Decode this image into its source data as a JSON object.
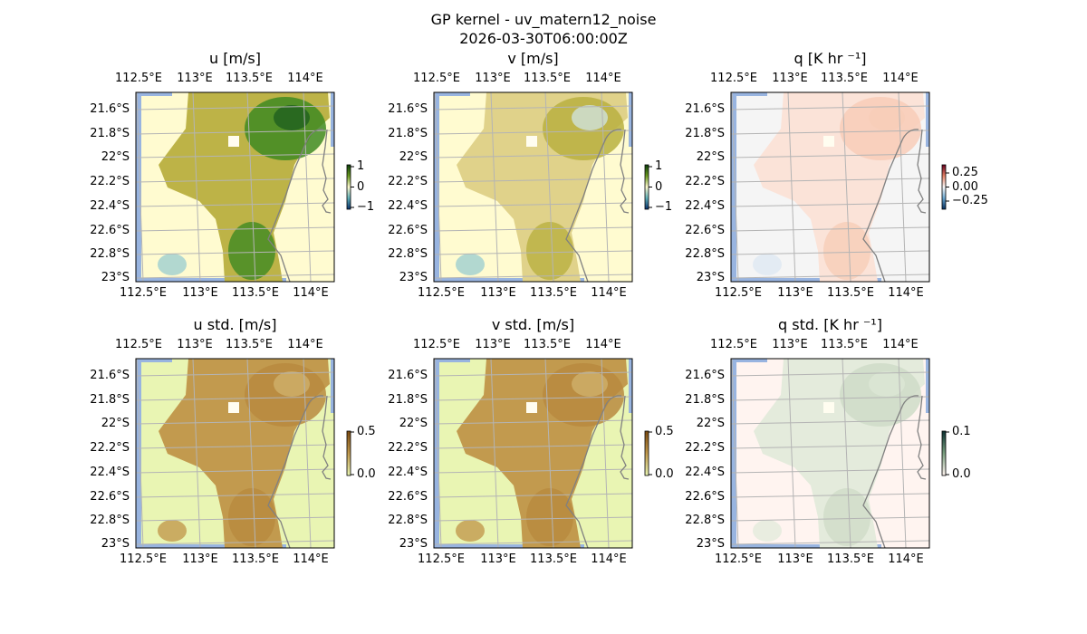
{
  "figure": {
    "title": "GP kernel - uv_matern12_noise",
    "subtitle": "2026-03-30T06:00:00Z"
  },
  "axes": {
    "lon_ticks": [
      "112.5°E",
      "113°E",
      "113.5°E",
      "114°E"
    ],
    "lat_ticks": [
      "21.6°S",
      "21.8°S",
      "22°S",
      "22.2°S",
      "22.4°S",
      "22.6°S",
      "22.8°S",
      "23°S"
    ]
  },
  "panels": [
    {
      "title": "u [m/s]",
      "colorbar_ticks": [
        "1",
        "0",
        "−1"
      ],
      "colors": {
        "bg": "#fffbd0",
        "field": "#bdb347",
        "hi": "#3f8a22",
        "hi2": "#1f5f1f",
        "low": "#9fcfcf",
        "cbar": [
          "#0a3d0a",
          "#6b9a20",
          "#fffbd0",
          "#60b0b8",
          "#08306b"
        ]
      }
    },
    {
      "title": "v [m/s]",
      "colorbar_ticks": [
        "1",
        "0",
        "−1"
      ],
      "colors": {
        "bg": "#fffbd0",
        "field": "#e0d28a",
        "hi": "#b9b040",
        "hi2": "#d0e2dc",
        "low": "#9fcfcf",
        "cbar": [
          "#0a3d0a",
          "#6b9a20",
          "#fffbd0",
          "#60b0b8",
          "#08306b"
        ]
      }
    },
    {
      "title": "q [K hr ⁻¹]",
      "colorbar_ticks": [
        "0.25",
        "0.00",
        "−0.25"
      ],
      "colors": {
        "bg": "#f5f5f5",
        "field": "#fbe3d8",
        "hi": "#f8cdb8",
        "hi2": "#f8cdb8",
        "low": "#dfe8f2",
        "cbar": [
          "#67001f",
          "#e58267",
          "#f7f7f7",
          "#6aa6cf",
          "#053061"
        ]
      }
    },
    {
      "title": "u std. [m/s]",
      "colorbar_ticks": [
        "0.5",
        "0.0"
      ],
      "colors": {
        "bg": "#e9f5b3",
        "field": "#c29a4e",
        "hi": "#b8893f",
        "hi2": "#cfb06a",
        "low": "#c29a4e",
        "cbar": [
          "#7a4a10",
          "#c29a4e",
          "#e9f5b3"
        ]
      }
    },
    {
      "title": "v std. [m/s]",
      "colorbar_ticks": [
        "0.5",
        "0.0"
      ],
      "colors": {
        "bg": "#e9f5b3",
        "field": "#c29a4e",
        "hi": "#b8893f",
        "hi2": "#cfb06a",
        "low": "#c29a4e",
        "cbar": [
          "#7a4a10",
          "#c29a4e",
          "#e9f5b3"
        ]
      }
    },
    {
      "title": "q std. [K hr ⁻¹]",
      "colorbar_ticks": [
        "0.1",
        "0.0"
      ],
      "colors": {
        "bg": "#fff4f0",
        "field": "#e4ebdc",
        "hi": "#cfdcc8",
        "hi2": "#dce6d4",
        "low": "#e4ebdc",
        "cbar": [
          "#0a3030",
          "#7aa080",
          "#fff4f0"
        ]
      }
    }
  ],
  "mask_color": "#98b4e0",
  "coast_color": "#808080",
  "grid_color": "#b4b4b4"
}
